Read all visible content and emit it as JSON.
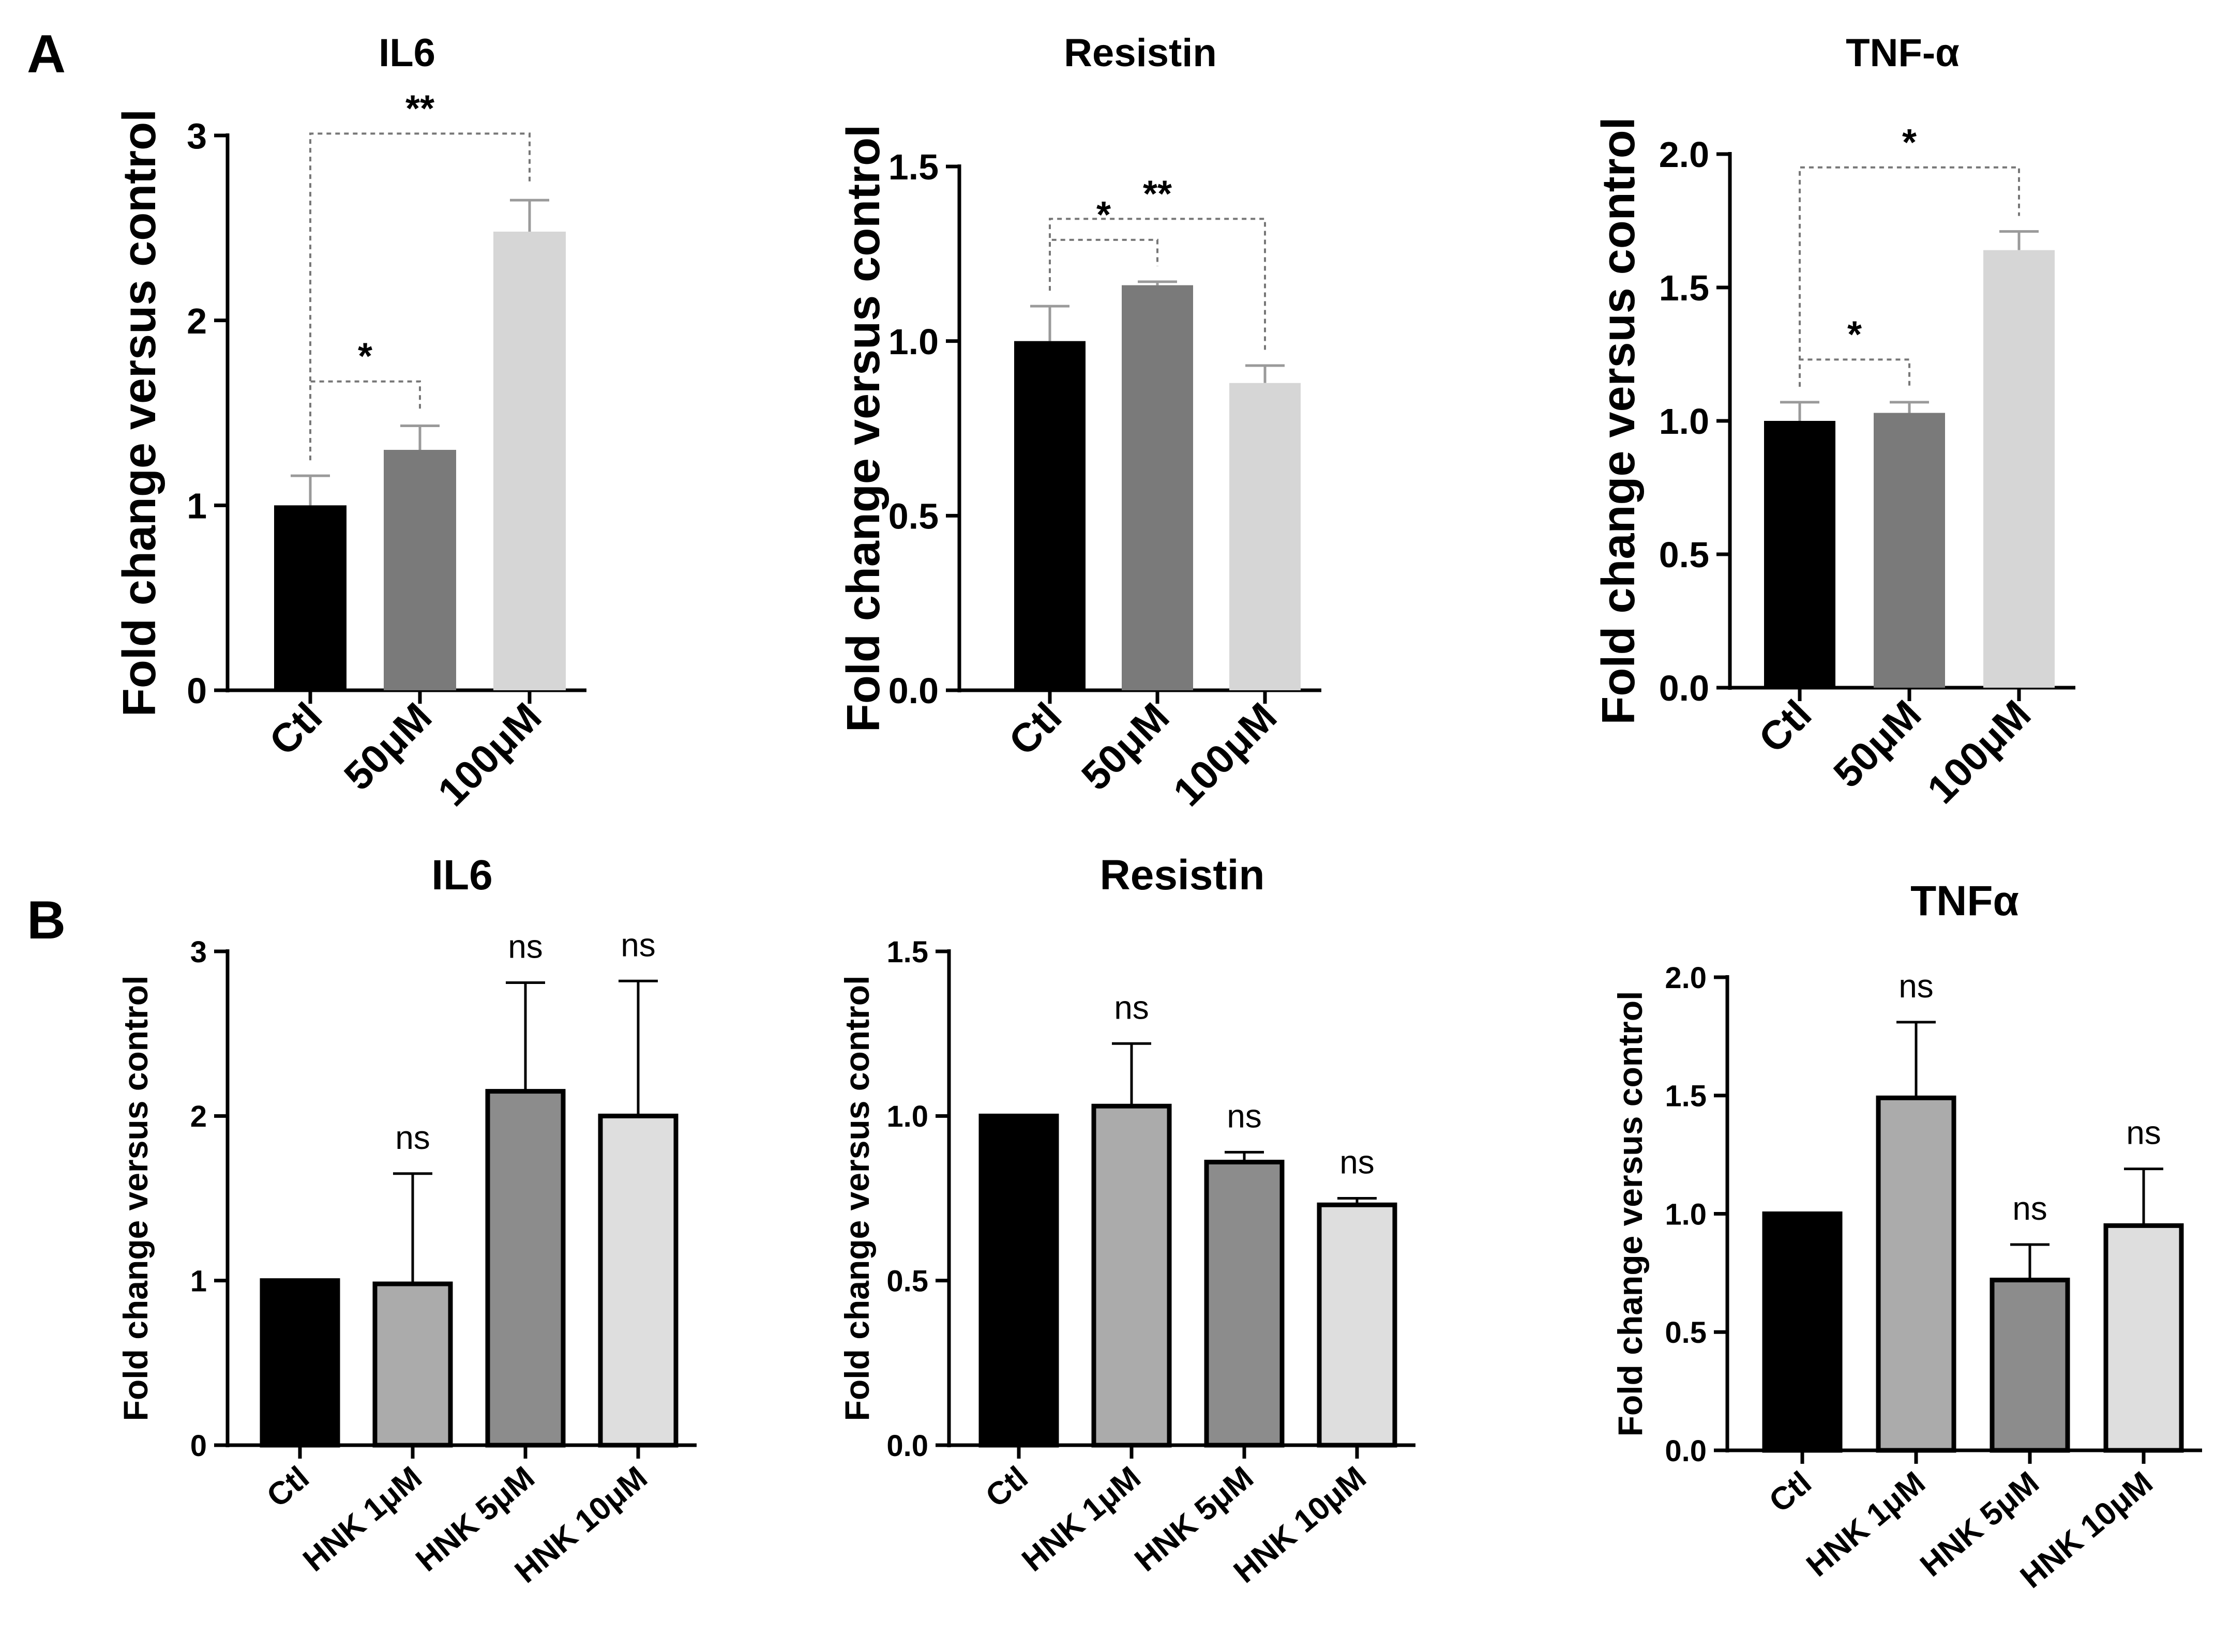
{
  "panel_labels": [
    "A",
    "B"
  ],
  "chart_data": [
    {
      "type": "bar",
      "panel": "A",
      "title": "IL6",
      "ylabel": "Fold change versus control",
      "xlabel": "",
      "ylim": [
        0,
        3
      ],
      "yticks": [
        "0",
        "1",
        "2",
        "3"
      ],
      "categories": [
        "Ctl",
        "50μM",
        "100μM"
      ],
      "values": [
        1.0,
        1.3,
        2.48
      ],
      "errors": [
        0.16,
        0.13,
        0.17
      ],
      "colors": [
        "#000000",
        "#7a7a7a",
        "#d6d6d6"
      ],
      "significance": [
        {
          "from": 0,
          "to": 1,
          "label": "*"
        },
        {
          "from": 0,
          "to": 2,
          "label": "**"
        }
      ]
    },
    {
      "type": "bar",
      "panel": "A",
      "title": "Resistin",
      "ylabel": "Fold change versus control",
      "xlabel": "",
      "ylim": [
        0,
        1.5
      ],
      "yticks": [
        "0.0",
        "0.5",
        "1.0",
        "1.5"
      ],
      "categories": [
        "Ctl",
        "50μM",
        "100μM"
      ],
      "values": [
        1.0,
        1.16,
        0.88
      ],
      "errors": [
        0.1,
        0.01,
        0.05
      ],
      "colors": [
        "#000000",
        "#7a7a7a",
        "#d6d6d6"
      ],
      "significance": [
        {
          "from": 0,
          "to": 1,
          "label": "*"
        },
        {
          "from": 0,
          "to": 2,
          "label": "**"
        }
      ]
    },
    {
      "type": "bar",
      "panel": "A",
      "title": "TNF-α",
      "ylabel": "Fold change versus control",
      "xlabel": "",
      "ylim": [
        0,
        2.0
      ],
      "yticks": [
        "0.0",
        "0.5",
        "1.0",
        "1.5",
        "2.0"
      ],
      "categories": [
        "Ctl",
        "50μM",
        "100μM"
      ],
      "values": [
        1.0,
        1.03,
        1.64
      ],
      "errors": [
        0.07,
        0.04,
        0.07
      ],
      "colors": [
        "#000000",
        "#7a7a7a",
        "#d6d6d6"
      ],
      "significance": [
        {
          "from": 0,
          "to": 1,
          "label": "*"
        },
        {
          "from": 0,
          "to": 2,
          "label": "*"
        }
      ]
    },
    {
      "type": "bar",
      "panel": "B",
      "title": "IL6",
      "ylabel": "Fold change versus control",
      "xlabel": "",
      "ylim": [
        0,
        3
      ],
      "yticks": [
        "0",
        "1",
        "2",
        "3"
      ],
      "categories": [
        "Ctl",
        "HNK 1μM",
        "HNK 5μM",
        "HNK 10μM"
      ],
      "values": [
        1.0,
        0.98,
        2.15,
        2.0
      ],
      "errors": [
        0,
        0.67,
        0.66,
        0.82
      ],
      "colors": [
        "#000000",
        "#ababab",
        "#8c8c8c",
        "#dedede"
      ],
      "labels": [
        "",
        "ns",
        "ns",
        "ns"
      ]
    },
    {
      "type": "bar",
      "panel": "B",
      "title": "Resistin",
      "ylabel": "Fold change versus control",
      "xlabel": "",
      "ylim": [
        0,
        1.5
      ],
      "yticks": [
        "0.0",
        "0.5",
        "1.0",
        "1.5"
      ],
      "categories": [
        "Ctl",
        "HNK 1μM",
        "HNK 5μM",
        "HNK 10μM"
      ],
      "values": [
        1.0,
        1.03,
        0.86,
        0.73
      ],
      "errors": [
        0,
        0.19,
        0.03,
        0.02
      ],
      "colors": [
        "#000000",
        "#ababab",
        "#8c8c8c",
        "#dedede"
      ],
      "labels": [
        "",
        "ns",
        "ns",
        "ns"
      ]
    },
    {
      "type": "bar",
      "panel": "B",
      "title": "TNFα",
      "ylabel": "Fold change versus control",
      "xlabel": "",
      "ylim": [
        0,
        2.0
      ],
      "yticks": [
        "0.0",
        "0.5",
        "1.0",
        "1.5",
        "2.0"
      ],
      "categories": [
        "Ctl",
        "HNK 1μM",
        "HNK 5μM",
        "HNK 10μM"
      ],
      "values": [
        1.0,
        1.49,
        0.72,
        0.95
      ],
      "errors": [
        0,
        0.32,
        0.15,
        0.24
      ],
      "colors": [
        "#000000",
        "#ababab",
        "#8c8c8c",
        "#dedede"
      ],
      "labels": [
        "",
        "ns",
        "ns",
        "ns"
      ]
    }
  ]
}
